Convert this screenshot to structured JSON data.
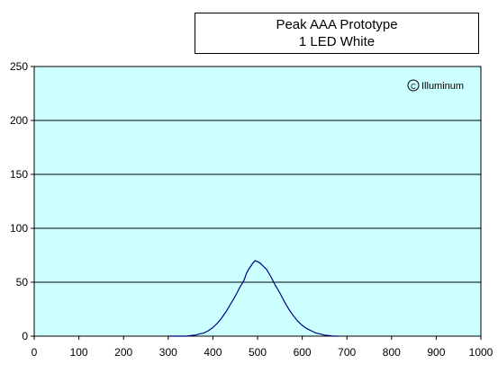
{
  "chart_data": {
    "type": "line",
    "title": [
      "Peak AAA Prototype",
      "1 LED White"
    ],
    "watermark": "Illuminum",
    "xlim": [
      0,
      1000
    ],
    "ylim": [
      0,
      250
    ],
    "x_ticks": [
      0,
      100,
      200,
      300,
      400,
      500,
      600,
      700,
      800,
      900,
      1000
    ],
    "y_ticks": [
      0,
      50,
      100,
      150,
      200,
      250
    ],
    "grid": "horizontal",
    "plot_background": "#ccffff",
    "line_color": "#000080",
    "series": [
      {
        "x": [
          300,
          320,
          340,
          350,
          360,
          370,
          380,
          390,
          400,
          410,
          420,
          430,
          440,
          450,
          460,
          470,
          475,
          480,
          485,
          490,
          495,
          500,
          505,
          510,
          515,
          520,
          530,
          540,
          550,
          560,
          570,
          580,
          590,
          600,
          610,
          620,
          630,
          640,
          650,
          660,
          670,
          680
        ],
        "y": [
          0,
          0,
          0,
          0.5,
          1,
          2,
          3,
          5,
          8,
          12,
          17,
          23,
          30,
          37,
          45,
          52,
          58,
          62,
          65,
          68,
          70,
          69,
          68,
          66,
          64,
          62,
          55,
          47,
          40,
          32,
          25,
          19,
          14,
          10,
          7,
          5,
          3,
          2,
          1,
          0.5,
          0,
          0
        ]
      }
    ]
  }
}
